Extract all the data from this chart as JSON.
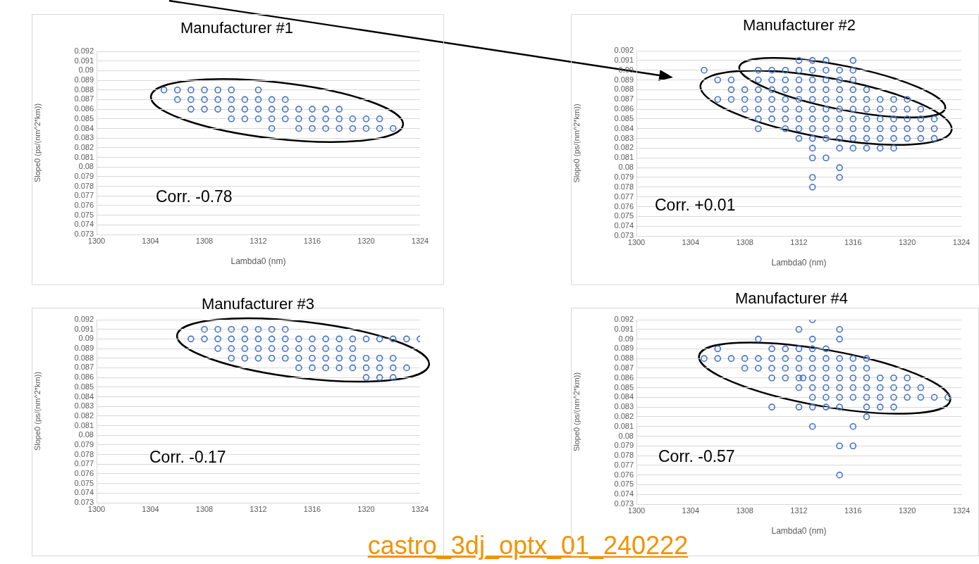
{
  "chart_data": [
    {
      "type": "scatter",
      "title": "Manufacturer #1",
      "xlabel": "Lambda0 (nm)",
      "ylabel": "Slope0 (ps/(nm^2*km))",
      "annotations": [
        "Corr. -0.78"
      ],
      "marker": "circle",
      "grid": "y",
      "xlim": [
        1300,
        1324
      ],
      "xticks": [
        1300,
        1304,
        1308,
        1312,
        1316,
        1320,
        1324
      ],
      "ylim": [
        0.073,
        0.092
      ],
      "yticks": [
        0.073,
        0.074,
        0.075,
        0.076,
        0.077,
        0.078,
        0.079,
        0.08,
        0.081,
        0.082,
        0.083,
        0.084,
        0.085,
        0.086,
        0.087,
        0.088,
        0.089,
        0.09,
        0.091,
        0.092
      ],
      "series": [
        {
          "color": "#4472c4",
          "x": [
            1305,
            1306,
            1307,
            1308,
            1309,
            1310,
            1312,
            1306,
            1307,
            1308,
            1309,
            1310,
            1311,
            1312,
            1313,
            1314,
            1307,
            1308,
            1309,
            1310,
            1311,
            1312,
            1313,
            1314,
            1315,
            1316,
            1317,
            1318,
            1310,
            1311,
            1312,
            1313,
            1314,
            1315,
            1316,
            1317,
            1318,
            1319,
            1320,
            1321,
            1313,
            1315,
            1316,
            1317,
            1318,
            1319,
            1320,
            1321,
            1322
          ],
          "values": [
            0.088,
            0.088,
            0.088,
            0.088,
            0.088,
            0.088,
            0.088,
            0.087,
            0.087,
            0.087,
            0.087,
            0.087,
            0.087,
            0.087,
            0.087,
            0.087,
            0.086,
            0.086,
            0.086,
            0.086,
            0.086,
            0.086,
            0.086,
            0.086,
            0.086,
            0.086,
            0.086,
            0.086,
            0.085,
            0.085,
            0.085,
            0.085,
            0.085,
            0.085,
            0.085,
            0.085,
            0.085,
            0.085,
            0.085,
            0.085,
            0.084,
            0.084,
            0.084,
            0.084,
            0.084,
            0.084,
            0.084,
            0.084,
            0.084
          ]
        }
      ]
    },
    {
      "type": "scatter",
      "title": "Manufacturer #2",
      "xlabel": "Lambda0 (nm)",
      "ylabel": "Slope0 (ps/(nm^2*km))",
      "annotations": [
        "Corr. +0.01"
      ],
      "marker": "circle",
      "grid": "y",
      "xlim": [
        1300,
        1324
      ],
      "xticks": [
        1300,
        1304,
        1308,
        1312,
        1316,
        1320,
        1324
      ],
      "ylim": [
        0.073,
        0.092
      ],
      "yticks": [
        0.073,
        0.074,
        0.075,
        0.076,
        0.077,
        0.078,
        0.079,
        0.08,
        0.081,
        0.082,
        0.083,
        0.084,
        0.085,
        0.086,
        0.087,
        0.088,
        0.089,
        0.09,
        0.091,
        0.092
      ],
      "series": [
        {
          "color": "#4472c4",
          "x": [
            1312,
            1313,
            1314,
            1316,
            1305,
            1309,
            1310,
            1311,
            1312,
            1313,
            1314,
            1315,
            1316,
            1306,
            1307,
            1309,
            1310,
            1311,
            1312,
            1313,
            1314,
            1315,
            1316,
            1307,
            1308,
            1309,
            1310,
            1311,
            1312,
            1313,
            1314,
            1315,
            1316,
            1317,
            1306,
            1307,
            1308,
            1309,
            1310,
            1311,
            1312,
            1313,
            1314,
            1315,
            1316,
            1317,
            1318,
            1319,
            1320,
            1308,
            1309,
            1310,
            1311,
            1312,
            1313,
            1314,
            1315,
            1316,
            1317,
            1318,
            1319,
            1320,
            1321,
            1309,
            1310,
            1311,
            1312,
            1313,
            1314,
            1315,
            1316,
            1317,
            1318,
            1319,
            1320,
            1321,
            1322,
            1309,
            1311,
            1312,
            1313,
            1314,
            1315,
            1316,
            1317,
            1318,
            1319,
            1320,
            1321,
            1322,
            1312,
            1313,
            1314,
            1315,
            1316,
            1317,
            1318,
            1319,
            1320,
            1321,
            1322,
            1313,
            1315,
            1316,
            1317,
            1318,
            1319,
            1313,
            1314,
            1315,
            1313,
            1315,
            1313
          ],
          "values": [
            0.091,
            0.091,
            0.091,
            0.091,
            0.09,
            0.09,
            0.09,
            0.09,
            0.09,
            0.09,
            0.09,
            0.09,
            0.09,
            0.089,
            0.089,
            0.089,
            0.089,
            0.089,
            0.089,
            0.089,
            0.089,
            0.089,
            0.089,
            0.088,
            0.088,
            0.088,
            0.088,
            0.088,
            0.088,
            0.088,
            0.088,
            0.088,
            0.088,
            0.088,
            0.087,
            0.087,
            0.087,
            0.087,
            0.087,
            0.087,
            0.087,
            0.087,
            0.087,
            0.087,
            0.087,
            0.087,
            0.087,
            0.087,
            0.087,
            0.086,
            0.086,
            0.086,
            0.086,
            0.086,
            0.086,
            0.086,
            0.086,
            0.086,
            0.086,
            0.086,
            0.086,
            0.086,
            0.086,
            0.085,
            0.085,
            0.085,
            0.085,
            0.085,
            0.085,
            0.085,
            0.085,
            0.085,
            0.085,
            0.085,
            0.085,
            0.085,
            0.085,
            0.084,
            0.084,
            0.084,
            0.084,
            0.084,
            0.084,
            0.084,
            0.084,
            0.084,
            0.084,
            0.084,
            0.084,
            0.084,
            0.083,
            0.083,
            0.083,
            0.083,
            0.083,
            0.083,
            0.083,
            0.083,
            0.083,
            0.083,
            0.083,
            0.082,
            0.082,
            0.082,
            0.082,
            0.082,
            0.082,
            0.081,
            0.081,
            0.08,
            0.079,
            0.079,
            0.078
          ]
        }
      ]
    },
    {
      "type": "scatter",
      "title": "Manufacturer #3",
      "ylabel": "Slope0 (ps/(nm^2*km))",
      "annotations": [
        "Corr. -0.17",
        "castro_3dj_optx_01_240222"
      ],
      "marker": "circle",
      "grid": "y",
      "xlim": [
        1300,
        1324
      ],
      "xticks": [
        1300,
        1304,
        1308,
        1312,
        1316,
        1320,
        1324
      ],
      "ylim": [
        0.073,
        0.092
      ],
      "yticks": [
        0.073,
        0.074,
        0.075,
        0.076,
        0.077,
        0.078,
        0.079,
        0.08,
        0.081,
        0.082,
        0.083,
        0.084,
        0.085,
        0.086,
        0.087,
        0.088,
        0.089,
        0.09,
        0.091,
        0.092
      ],
      "series": [
        {
          "color": "#4472c4",
          "x": [
            1308,
            1309,
            1310,
            1311,
            1312,
            1313,
            1314,
            1307,
            1308,
            1309,
            1310,
            1311,
            1312,
            1313,
            1314,
            1315,
            1316,
            1317,
            1318,
            1319,
            1320,
            1321,
            1322,
            1323,
            1324,
            1309,
            1310,
            1311,
            1312,
            1313,
            1314,
            1315,
            1316,
            1317,
            1318,
            1319,
            1310,
            1311,
            1312,
            1313,
            1314,
            1315,
            1316,
            1317,
            1318,
            1319,
            1320,
            1321,
            1322,
            1315,
            1316,
            1317,
            1318,
            1319,
            1320,
            1321,
            1322,
            1323,
            1320,
            1321,
            1322
          ],
          "values": [
            0.091,
            0.091,
            0.091,
            0.091,
            0.091,
            0.091,
            0.091,
            0.09,
            0.09,
            0.09,
            0.09,
            0.09,
            0.09,
            0.09,
            0.09,
            0.09,
            0.09,
            0.09,
            0.09,
            0.09,
            0.09,
            0.09,
            0.09,
            0.09,
            0.09,
            0.089,
            0.089,
            0.089,
            0.089,
            0.089,
            0.089,
            0.089,
            0.089,
            0.089,
            0.089,
            0.089,
            0.088,
            0.088,
            0.088,
            0.088,
            0.088,
            0.088,
            0.088,
            0.088,
            0.088,
            0.088,
            0.088,
            0.088,
            0.088,
            0.087,
            0.087,
            0.087,
            0.087,
            0.087,
            0.087,
            0.087,
            0.087,
            0.087,
            0.086,
            0.086,
            0.086
          ]
        }
      ]
    },
    {
      "type": "scatter",
      "title": "Manufacturer #4",
      "xlabel": "Lambda0 (nm)",
      "ylabel": "Slope0 (ps/(nm^2*km))",
      "annotations": [
        "Corr. -0.57"
      ],
      "marker": "circle",
      "grid": "y",
      "xlim": [
        1300,
        1324
      ],
      "xticks": [
        1300,
        1304,
        1308,
        1312,
        1316,
        1320,
        1324
      ],
      "ylim": [
        0.073,
        0.092
      ],
      "yticks": [
        0.073,
        0.074,
        0.075,
        0.076,
        0.077,
        0.078,
        0.079,
        0.08,
        0.081,
        0.082,
        0.083,
        0.084,
        0.085,
        0.086,
        0.087,
        0.088,
        0.089,
        0.09,
        0.091,
        0.092
      ],
      "series": [
        {
          "color": "#4472c4",
          "x": [
            1313,
            1312,
            1315,
            1309,
            1313,
            1315,
            1306,
            1310,
            1311,
            1312,
            1313,
            1314,
            1305,
            1306,
            1307,
            1308,
            1309,
            1310,
            1311,
            1312,
            1313,
            1314,
            1315,
            1316,
            1317,
            1308,
            1309,
            1310,
            1311,
            1312,
            1313,
            1314,
            1315,
            1316,
            1317,
            1310,
            1311,
            1312,
            1312.3,
            1313,
            1314,
            1315,
            1316,
            1317,
            1318,
            1319,
            1320,
            1312,
            1313,
            1314,
            1315,
            1316,
            1317,
            1318,
            1319,
            1320,
            1321,
            1313,
            1314,
            1315,
            1316,
            1317,
            1318,
            1319,
            1320,
            1321,
            1322,
            1323,
            1310,
            1312,
            1313,
            1314,
            1315,
            1317,
            1318,
            1319,
            1317,
            1313,
            1316,
            1315,
            1316,
            1315
          ],
          "values": [
            0.092,
            0.091,
            0.091,
            0.09,
            0.09,
            0.09,
            0.089,
            0.089,
            0.089,
            0.089,
            0.089,
            0.089,
            0.088,
            0.088,
            0.088,
            0.088,
            0.088,
            0.088,
            0.088,
            0.088,
            0.088,
            0.088,
            0.088,
            0.088,
            0.088,
            0.087,
            0.087,
            0.087,
            0.087,
            0.087,
            0.087,
            0.087,
            0.087,
            0.087,
            0.087,
            0.086,
            0.086,
            0.086,
            0.086,
            0.086,
            0.086,
            0.086,
            0.086,
            0.086,
            0.086,
            0.086,
            0.086,
            0.085,
            0.085,
            0.085,
            0.085,
            0.085,
            0.085,
            0.085,
            0.085,
            0.085,
            0.085,
            0.084,
            0.084,
            0.084,
            0.084,
            0.084,
            0.084,
            0.084,
            0.084,
            0.084,
            0.084,
            0.084,
            0.083,
            0.083,
            0.083,
            0.083,
            0.083,
            0.083,
            0.083,
            0.083,
            0.082,
            0.081,
            0.081,
            0.079,
            0.079,
            0.076
          ]
        }
      ]
    }
  ]
}
